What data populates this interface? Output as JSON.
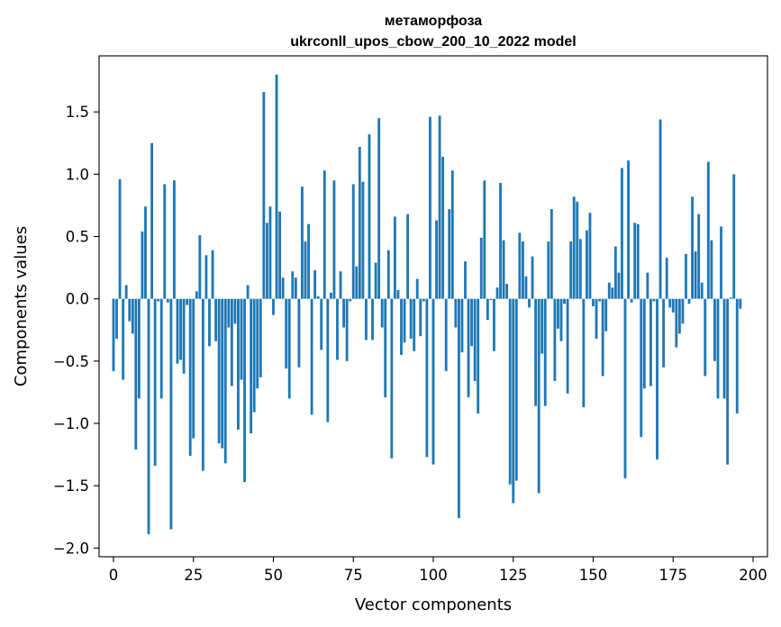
{
  "chart_data": {
    "type": "bar",
    "title_line1": "метаморфоза",
    "title_line2": "ukrconll_upos_cbow_200_10_2022 model",
    "xlabel": "Vector components",
    "ylabel": "Components values",
    "xlim": [
      -4.5,
      204.5
    ],
    "ylim": [
      -2.07,
      1.95
    ],
    "xticks": [
      0,
      25,
      50,
      75,
      100,
      125,
      150,
      175,
      200
    ],
    "yticks": [
      -2.0,
      -1.5,
      -1.0,
      -0.5,
      0.0,
      0.5,
      1.0,
      1.5
    ],
    "ytick_labels": [
      "−2.0",
      "−1.5",
      "−1.0",
      "−0.5",
      "0.0",
      "0.5",
      "1.0",
      "1.5"
    ],
    "bar_color": "#1f77b4",
    "grid": false,
    "values": [
      -0.58,
      -0.32,
      0.96,
      -0.65,
      0.11,
      -0.18,
      -0.28,
      -1.21,
      -0.8,
      0.54,
      0.74,
      -1.89,
      1.25,
      -1.34,
      -0.02,
      -0.8,
      0.92,
      -0.03,
      -1.85,
      0.95,
      -0.52,
      -0.49,
      -0.6,
      -0.05,
      -1.26,
      -1.12,
      0.06,
      0.51,
      -1.38,
      0.35,
      -0.38,
      0.39,
      -0.34,
      -1.16,
      -1.2,
      -1.32,
      -0.23,
      -0.7,
      -0.2,
      -1.05,
      -0.65,
      -1.47,
      0.11,
      -1.08,
      -0.91,
      -0.72,
      -0.63,
      1.66,
      0.61,
      0.74,
      -0.13,
      1.8,
      0.7,
      0.17,
      -0.56,
      -0.8,
      0.22,
      0.17,
      -0.55,
      0.9,
      0.46,
      0.6,
      -0.93,
      0.23,
      0.02,
      -0.41,
      1.03,
      -0.99,
      0.05,
      0.95,
      -0.49,
      0.22,
      -0.23,
      -0.5,
      -0.02,
      0.92,
      0.26,
      1.22,
      0.94,
      -0.33,
      1.32,
      -0.33,
      0.29,
      1.45,
      -0.23,
      -0.79,
      0.39,
      -1.28,
      0.66,
      0.07,
      -0.45,
      -0.35,
      0.68,
      -0.32,
      -0.42,
      0.16,
      -0.3,
      -0.02,
      -1.27,
      1.46,
      -1.33,
      0.63,
      1.47,
      1.14,
      -0.58,
      0.72,
      1.03,
      -0.23,
      -1.76,
      -0.43,
      0.3,
      -0.79,
      -0.38,
      -0.66,
      -0.92,
      0.49,
      0.95,
      -0.17,
      -0.01,
      -0.42,
      0.09,
      0.93,
      0.47,
      0.12,
      -1.49,
      -1.64,
      -1.46,
      0.53,
      0.46,
      0.18,
      -0.07,
      0.34,
      -0.86,
      -1.56,
      -0.44,
      -0.86,
      0.46,
      0.72,
      -0.66,
      -0.24,
      -0.34,
      -0.04,
      -0.76,
      0.46,
      0.82,
      0.78,
      0.48,
      -0.87,
      0.55,
      0.69,
      -0.06,
      -0.32,
      -0.02,
      -0.62,
      -0.26,
      0.13,
      0.09,
      0.42,
      0.21,
      1.05,
      -1.44,
      1.11,
      -0.03,
      0.61,
      0.6,
      -1.11,
      -0.72,
      0.21,
      -0.7,
      -0.02,
      -1.29,
      1.44,
      -0.55,
      0.33,
      -0.07,
      -0.11,
      -0.39,
      -0.28,
      -0.2,
      0.36,
      -0.04,
      0.82,
      0.38,
      0.68,
      0.13,
      -0.62,
      1.1,
      0.47,
      -0.5,
      -0.8,
      0.58,
      -0.8,
      -1.33,
      0.01,
      1.0,
      -0.92,
      -0.08
    ]
  }
}
